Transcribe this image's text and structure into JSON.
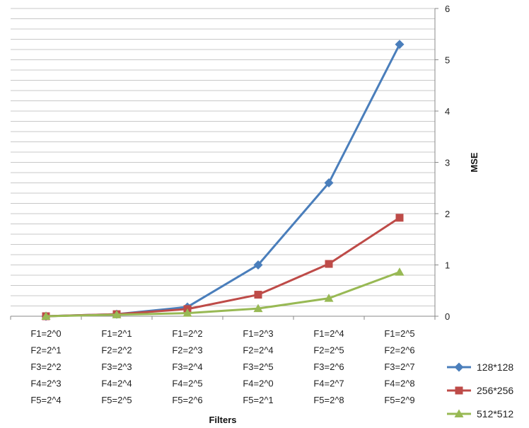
{
  "chart_data": {
    "type": "line",
    "xlabel": "Filters",
    "ylabel": "MSE",
    "ylim": [
      0,
      6
    ],
    "yticks": [
      0,
      1,
      2,
      3,
      4,
      5,
      6
    ],
    "minor_gridlines_per_unit": 5,
    "y_axis_side": "right",
    "legend_position": "bottom-right",
    "categories": [
      [
        "F1=2^0",
        "F2=2^1",
        "F3=2^2",
        "F4=2^3",
        "F5=2^4"
      ],
      [
        "F1=2^1",
        "F2=2^2",
        "F3=2^3",
        "F4=2^4",
        "F5=2^5"
      ],
      [
        "F1=2^2",
        "F2=2^3",
        "F3=2^4",
        "F4=2^5",
        "F5=2^6"
      ],
      [
        "F1=2^3",
        "F2=2^4",
        "F3=2^5",
        "F4=2^0",
        "F5=2^1"
      ],
      [
        "F1=2^4",
        "F2=2^5",
        "F3=2^6",
        "F4=2^7",
        "F5=2^8"
      ],
      [
        "F1=2^5",
        "F2=2^6",
        "F3=2^7",
        "F4=2^8",
        "F5=2^9"
      ]
    ],
    "series": [
      {
        "name": "128*128",
        "color": "#4a7ebb",
        "marker": "diamond",
        "values": [
          0.0,
          0.04,
          0.18,
          1.0,
          2.6,
          5.3
        ]
      },
      {
        "name": "256*256",
        "color": "#be4b48",
        "marker": "square",
        "values": [
          0.0,
          0.04,
          0.14,
          0.42,
          1.02,
          1.92
        ]
      },
      {
        "name": "512*512",
        "color": "#98b954",
        "marker": "triangle",
        "values": [
          0.0,
          0.03,
          0.06,
          0.15,
          0.35,
          0.86
        ]
      }
    ]
  }
}
